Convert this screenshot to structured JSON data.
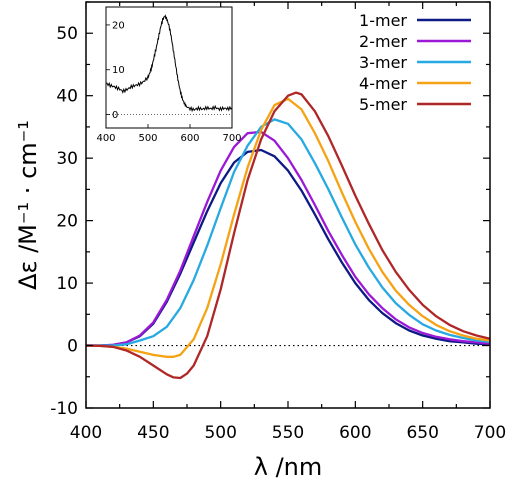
{
  "chart_data": {
    "type": "line",
    "xlabel": "λ /nm",
    "ylabel": "Δε /M⁻¹ · cm⁻¹",
    "xlim": [
      400,
      700
    ],
    "ylim": [
      -10,
      55
    ],
    "xticks": [
      400,
      450,
      500,
      550,
      600,
      650,
      700
    ],
    "yticks": [
      -10,
      0,
      10,
      20,
      30,
      40,
      50
    ],
    "legend_position": "top-right",
    "zero_line": "dotted",
    "series": [
      {
        "name": "1-mer",
        "color": "#0d1a85",
        "x": [
          400,
          410,
          420,
          430,
          440,
          450,
          460,
          470,
          480,
          490,
          500,
          510,
          520,
          530,
          540,
          550,
          560,
          570,
          580,
          590,
          600,
          610,
          620,
          630,
          640,
          650,
          660,
          670,
          680,
          690,
          700
        ],
        "y": [
          0,
          0,
          0.1,
          0.5,
          1.5,
          3.5,
          7,
          11.5,
          16.5,
          21.5,
          26,
          29.3,
          31,
          31.3,
          30.3,
          28,
          24.8,
          21,
          17,
          13.3,
          10,
          7.3,
          5.2,
          3.6,
          2.4,
          1.6,
          1.1,
          0.7,
          0.5,
          0.3,
          0.2
        ]
      },
      {
        "name": "2-mer",
        "color": "#9b18d6",
        "x": [
          400,
          410,
          420,
          430,
          440,
          450,
          460,
          470,
          480,
          490,
          500,
          510,
          520,
          530,
          540,
          550,
          560,
          570,
          580,
          590,
          600,
          610,
          620,
          630,
          640,
          650,
          660,
          670,
          680,
          690,
          700
        ],
        "y": [
          0,
          0,
          0.1,
          0.5,
          1.6,
          3.7,
          7.3,
          12,
          17.5,
          23,
          28,
          31.8,
          34,
          34.2,
          32.8,
          30,
          26.5,
          22.5,
          18.3,
          14.5,
          11,
          8.2,
          6,
          4.2,
          2.9,
          2,
          1.4,
          1,
          0.7,
          0.5,
          0.3
        ]
      },
      {
        "name": "3-mer",
        "color": "#27a9e1",
        "x": [
          400,
          410,
          420,
          430,
          440,
          450,
          460,
          470,
          480,
          490,
          500,
          510,
          520,
          530,
          540,
          550,
          560,
          570,
          580,
          590,
          600,
          610,
          620,
          630,
          640,
          650,
          660,
          670,
          680,
          690,
          700
        ],
        "y": [
          0,
          0,
          0,
          0.2,
          0.8,
          1.5,
          3,
          6,
          10.5,
          16,
          22,
          27.8,
          32,
          35,
          36.2,
          35.5,
          33,
          29.2,
          25,
          20.5,
          16.2,
          12.5,
          9.3,
          6.8,
          4.9,
          3.4,
          2.4,
          1.7,
          1.2,
          0.8,
          0.6
        ]
      },
      {
        "name": "4-mer",
        "color": "#f5a315",
        "x": [
          400,
          410,
          420,
          430,
          440,
          450,
          460,
          465,
          470,
          480,
          490,
          500,
          510,
          520,
          530,
          540,
          550,
          560,
          570,
          580,
          590,
          600,
          610,
          620,
          630,
          640,
          650,
          660,
          670,
          680,
          690,
          700
        ],
        "y": [
          0,
          -0.05,
          -0.2,
          -0.5,
          -1,
          -1.5,
          -1.8,
          -1.8,
          -1.5,
          1,
          6,
          13,
          21,
          28.5,
          34.5,
          38.5,
          39.5,
          37.8,
          34,
          29.5,
          24.5,
          19.8,
          15.5,
          11.8,
          8.8,
          6.5,
          4.7,
          3.3,
          2.3,
          1.6,
          1.1,
          0.8
        ]
      },
      {
        "name": "5-mer",
        "color": "#b02727",
        "x": [
          400,
          410,
          420,
          430,
          440,
          450,
          460,
          465,
          470,
          475,
          480,
          490,
          500,
          510,
          520,
          530,
          540,
          550,
          556,
          560,
          570,
          580,
          590,
          600,
          610,
          620,
          630,
          640,
          650,
          660,
          670,
          680,
          690,
          700
        ],
        "y": [
          0,
          -0.05,
          -0.2,
          -0.8,
          -1.8,
          -3.2,
          -4.6,
          -5.1,
          -5.2,
          -4.5,
          -3.2,
          1.5,
          9,
          18,
          26.5,
          33,
          37.5,
          40,
          40.5,
          40.2,
          37.5,
          33.5,
          28.8,
          24,
          19.5,
          15.3,
          11.8,
          8.9,
          6.5,
          4.7,
          3.3,
          2.3,
          1.6,
          1.1
        ]
      }
    ],
    "inset": {
      "type": "line",
      "xlim": [
        400,
        700
      ],
      "ylim": [
        -3,
        24
      ],
      "xticks": [
        400,
        500,
        600,
        700
      ],
      "yticks": [
        0,
        10,
        20
      ],
      "zero_line": "dotted",
      "color": "#000000",
      "x": [
        400,
        410,
        420,
        430,
        440,
        450,
        460,
        470,
        480,
        490,
        500,
        505,
        510,
        515,
        520,
        525,
        530,
        535,
        540,
        545,
        550,
        555,
        560,
        565,
        570,
        575,
        580,
        585,
        590,
        600,
        610,
        620,
        630,
        640,
        650,
        660,
        670,
        680,
        690,
        700
      ],
      "y": [
        7,
        6.5,
        6.2,
        5.8,
        5.2,
        5.6,
        6.2,
        6.5,
        6.8,
        7.4,
        8.3,
        9.5,
        11,
        13,
        15,
        17.2,
        19.5,
        21.2,
        22,
        21.3,
        19.8,
        17.5,
        14.5,
        11.5,
        8.5,
        6,
        4,
        2.8,
        1.9,
        1.3,
        1.1,
        1.4,
        1.2,
        1.5,
        1.3,
        1.6,
        1.2,
        1.4,
        1.3,
        1.5
      ]
    }
  }
}
